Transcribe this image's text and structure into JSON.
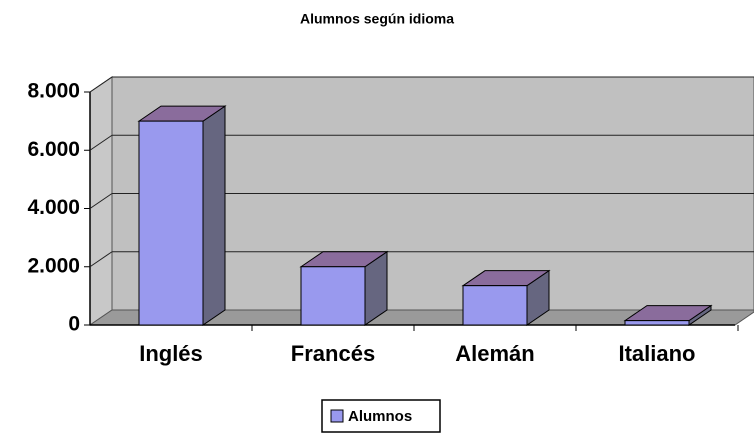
{
  "chart_data": {
    "type": "bar",
    "title": "Alumnos según idioma",
    "categories": [
      "Inglés",
      "Francés",
      "Alemán",
      "Italiano"
    ],
    "series": [
      {
        "name": "Alumnos",
        "color": "#9999ee",
        "values": [
          7000,
          2000,
          1350,
          150
        ]
      }
    ],
    "ylim": [
      0,
      8000
    ],
    "yticks": [
      0,
      {
        "value": 2000,
        "label": "2.000"
      },
      {
        "value": 4000,
        "label": "4.000"
      },
      {
        "value": 6000,
        "label": "6.000"
      },
      {
        "value": 8000,
        "label": "8.000"
      }
    ],
    "grid": true,
    "legend": "bottom"
  }
}
